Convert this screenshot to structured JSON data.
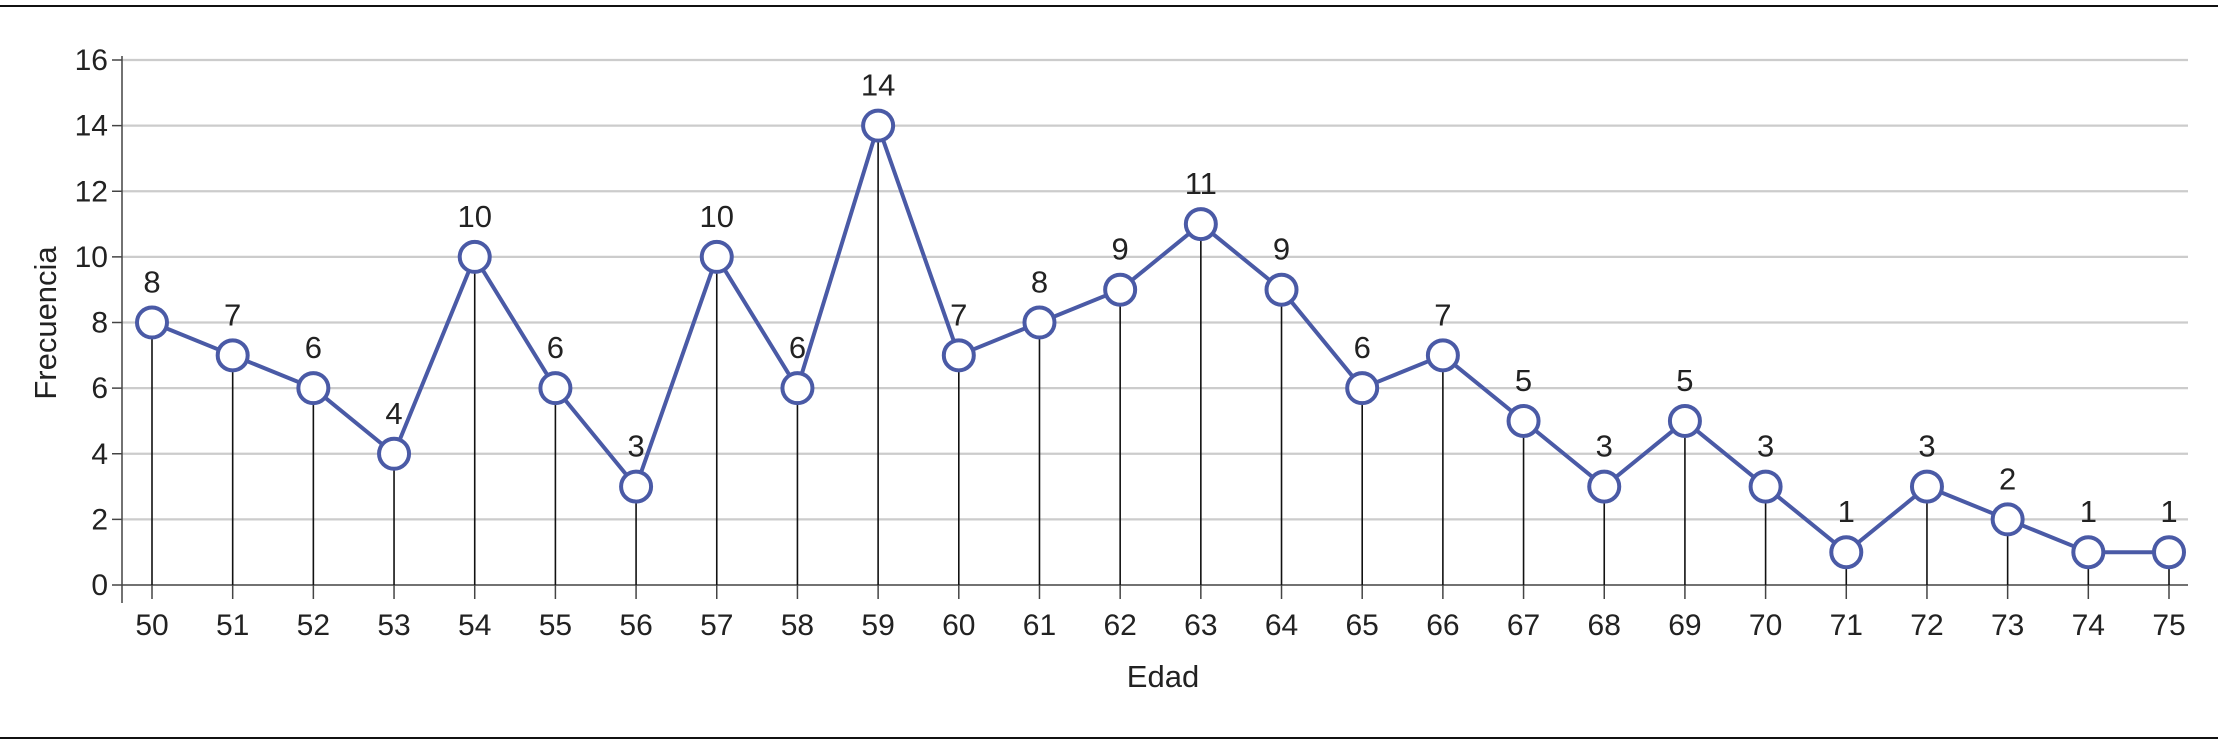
{
  "chart_data": {
    "type": "line",
    "title": "",
    "xlabel": "Edad",
    "ylabel": "Frecuencia",
    "x": [
      50,
      51,
      52,
      53,
      54,
      55,
      56,
      57,
      58,
      59,
      60,
      61,
      62,
      63,
      64,
      65,
      66,
      67,
      68,
      69,
      70,
      71,
      72,
      73,
      74,
      75
    ],
    "series": [
      {
        "name": "",
        "values": [
          8,
          7,
          6,
          4,
          10,
          6,
          3,
          10,
          6,
          14,
          7,
          8,
          9,
          11,
          9,
          6,
          7,
          5,
          3,
          5,
          3,
          1,
          3,
          2,
          1,
          1
        ]
      }
    ],
    "ylim": [
      0,
      16
    ],
    "yticks": [
      0,
      2,
      4,
      6,
      8,
      10,
      12,
      14,
      16
    ],
    "grid": true,
    "data_labels": true,
    "drop_lines": true,
    "colors": {
      "line": "#4a5aa6",
      "marker_fill": "#ffffff",
      "grid": "#cccccc",
      "axis": "#444444",
      "drop_line": "#111111",
      "frame": "#111111"
    }
  }
}
